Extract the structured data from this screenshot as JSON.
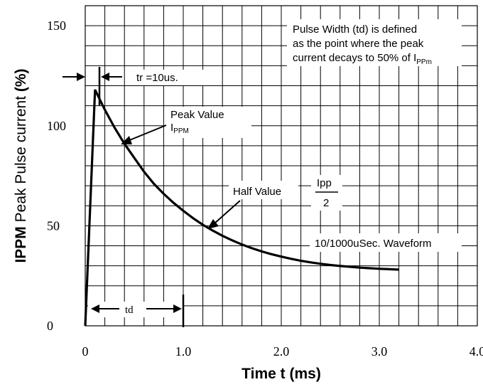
{
  "chart_data": {
    "type": "line",
    "xlabel": "Time t (ms)",
    "ylabel_prefix": "IPPM",
    "ylabel_main": " Peak Pulse current ",
    "ylabel_unit": "(%)",
    "xlim": [
      0,
      4.0
    ],
    "ylim": [
      0,
      160
    ],
    "x_ticks": [
      "0",
      "1.0",
      "2.0",
      "3.0",
      "4.0"
    ],
    "y_ticks": [
      "0",
      "50",
      "100",
      "150"
    ],
    "grid": true,
    "series": [
      {
        "x": [
          0,
          0.1,
          0.2,
          0.3,
          0.4,
          0.5,
          0.6,
          0.7,
          0.8,
          0.9,
          1.0,
          1.1,
          1.2,
          1.3,
          1.4,
          1.5,
          1.6,
          1.7,
          1.8,
          1.9,
          2.0,
          2.1,
          2.2,
          2.3,
          2.4,
          2.5,
          2.6,
          2.7,
          2.8,
          2.9,
          3.0,
          3.1,
          3.2
        ],
        "y": [
          0,
          118,
          108,
          99,
          91,
          84,
          77,
          71,
          66,
          61.5,
          57.5,
          53.8,
          50.5,
          47.6,
          45.0,
          42.7,
          40.6,
          38.8,
          37.2,
          35.8,
          34.6,
          33.5,
          32.5,
          31.7,
          31.0,
          30.4,
          29.9,
          29.5,
          29.1,
          28.8,
          28.5,
          28.3,
          28.1
        ]
      }
    ]
  },
  "annotations": {
    "pulse_width_line1": "Pulse Width (td) is defined",
    "pulse_width_line2": "as the point where the peak",
    "pulse_width_line3": "current decays to 50% of I",
    "pulse_width_sub": "PPm",
    "tr": "tr =10us.",
    "peak_value": "Peak Value",
    "peak_sym": "I",
    "peak_sub": "PPM",
    "half_value": "Half Value",
    "ipp_num": "Ipp",
    "ipp_den": "2",
    "waveform": "10/1000uSec. Waveform",
    "td": "td"
  }
}
